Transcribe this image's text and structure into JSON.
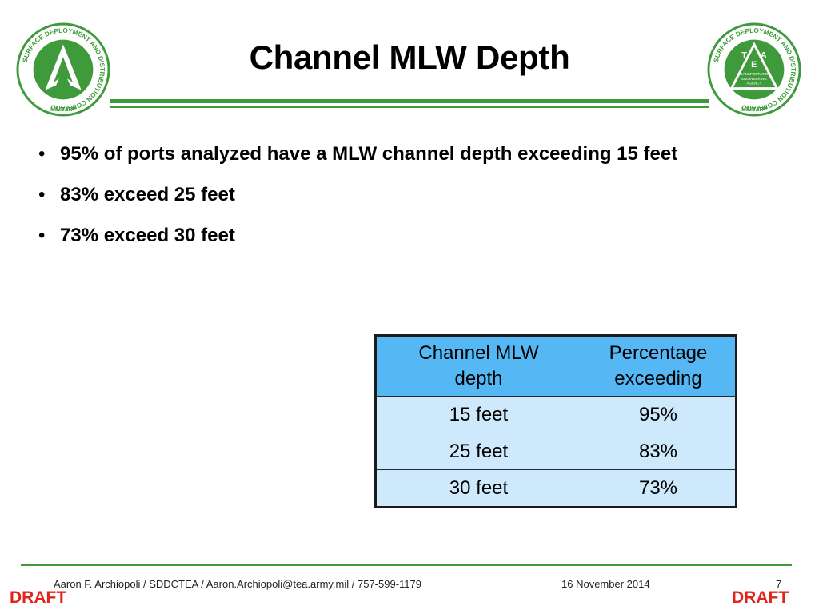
{
  "slide": {
    "title": "Channel MLW Depth",
    "bullets": [
      "95% of ports analyzed have a MLW channel depth exceeding 15 feet",
      "83% exceed 25 feet",
      "73% exceed 30 feet"
    ],
    "bullet_glyph": "•"
  },
  "logos": {
    "left": {
      "icon": "sddc-seal-icon",
      "ring_text": "SURFACE DEPLOYMENT AND DISTRIBUTION COMMAND",
      "bottom_text": "MILITARY",
      "color": "#3e9a3a"
    },
    "right": {
      "icon": "tea-seal-icon",
      "ring_text": "SURFACE DEPLOYMENT AND DISTRIBUTION COMMAND",
      "bottom_text": "MILITARY",
      "letters": [
        "T",
        "E",
        "A"
      ],
      "inner_text": [
        "TRANSPORTATION",
        "ENGINEERING",
        "AGENCY"
      ],
      "color": "#3e9a3a"
    }
  },
  "table": {
    "headers": [
      "Channel MLW depth",
      "Percentage exceeding"
    ],
    "header_lines": [
      [
        "Channel MLW",
        "depth"
      ],
      [
        "Percentage",
        "exceeding"
      ]
    ],
    "rows": [
      [
        "15 feet",
        "95%"
      ],
      [
        "25 feet",
        "83%"
      ],
      [
        "30 feet",
        "73%"
      ]
    ],
    "header_color": "#55b8f5",
    "row_color": "#cde9fb"
  },
  "footer": {
    "author": "Aaron F. Archiopoli / SDDCTEA / Aaron.Archiopoli@tea.army.mil / 757-599-1179",
    "date": "16 November 2014",
    "page_number": "7",
    "draft_label": "DRAFT",
    "rule_color": "#3e9a3a",
    "draft_color": "#e0241b"
  }
}
